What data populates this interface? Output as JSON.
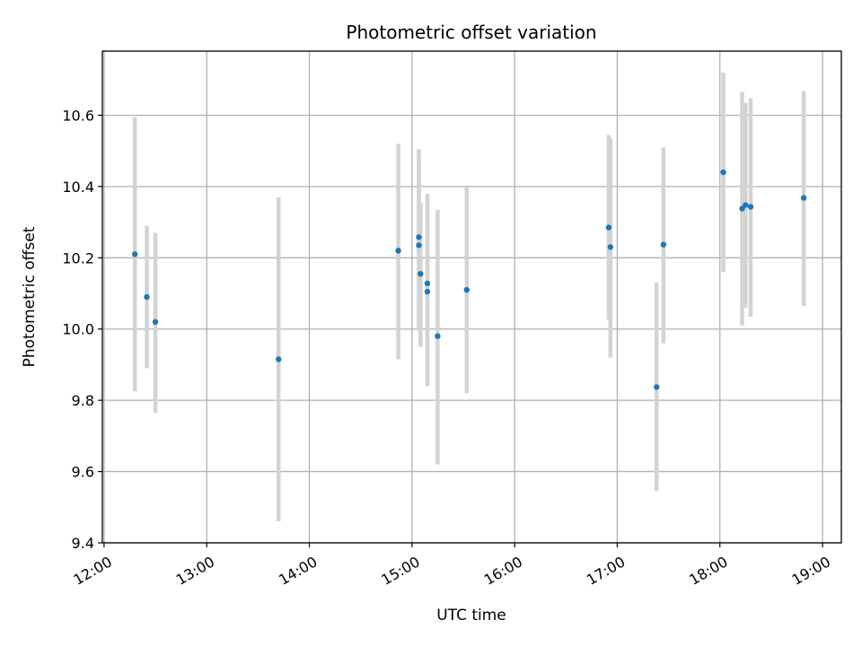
{
  "chart_data": {
    "type": "scatter",
    "title": "Photometric offset variation",
    "xlabel": "UTC time",
    "ylabel": "Photometric offset",
    "x_is_time": true,
    "xlim": [
      "11:59",
      "19:11"
    ],
    "ylim": [
      9.4,
      10.78
    ],
    "x_ticks": [
      "12:00",
      "13:00",
      "14:00",
      "15:00",
      "16:00",
      "17:00",
      "18:00",
      "19:00"
    ],
    "y_ticks": [
      9.4,
      9.6,
      9.8,
      10.0,
      10.2,
      10.4,
      10.6
    ],
    "y_tick_labels": [
      "9.4",
      "9.6",
      "9.8",
      "10.0",
      "10.2",
      "10.4",
      "10.6"
    ],
    "grid": true,
    "point_color": "#1f77b4",
    "errorbar_color": "#d3d3d3",
    "series": [
      {
        "points": [
          {
            "x": "12:18",
            "y": 10.21,
            "ylow": 9.825,
            "yhigh": 10.595
          },
          {
            "x": "12:25",
            "y": 10.09,
            "ylow": 9.89,
            "yhigh": 10.29
          },
          {
            "x": "12:30",
            "y": 10.02,
            "ylow": 9.765,
            "yhigh": 10.27
          },
          {
            "x": "13:42",
            "y": 9.915,
            "ylow": 9.46,
            "yhigh": 10.37
          },
          {
            "x": "14:52",
            "y": 10.22,
            "ylow": 9.915,
            "yhigh": 10.52
          },
          {
            "x": "15:04",
            "y": 10.258,
            "ylow": 10.01,
            "yhigh": 10.505
          },
          {
            "x": "15:04",
            "y": 10.235,
            "ylow": 9.995,
            "yhigh": 10.47
          },
          {
            "x": "15:05",
            "y": 10.155,
            "ylow": 9.95,
            "yhigh": 10.355
          },
          {
            "x": "15:09",
            "y": 10.105,
            "ylow": 9.84,
            "yhigh": 10.37
          },
          {
            "x": "15:09",
            "y": 10.128,
            "ylow": 9.875,
            "yhigh": 10.38
          },
          {
            "x": "15:15",
            "y": 9.98,
            "ylow": 9.62,
            "yhigh": 10.335
          },
          {
            "x": "15:32",
            "y": 10.11,
            "ylow": 9.82,
            "yhigh": 10.4
          },
          {
            "x": "16:55",
            "y": 10.285,
            "ylow": 10.025,
            "yhigh": 10.545
          },
          {
            "x": "16:56",
            "y": 10.23,
            "ylow": 9.92,
            "yhigh": 10.535
          },
          {
            "x": "17:23",
            "y": 9.837,
            "ylow": 9.545,
            "yhigh": 10.13
          },
          {
            "x": "17:27",
            "y": 10.237,
            "ylow": 9.96,
            "yhigh": 10.51
          },
          {
            "x": "18:02",
            "y": 10.44,
            "ylow": 10.16,
            "yhigh": 10.72
          },
          {
            "x": "18:13",
            "y": 10.338,
            "ylow": 10.01,
            "yhigh": 10.665
          },
          {
            "x": "18:15",
            "y": 10.348,
            "ylow": 10.06,
            "yhigh": 10.635
          },
          {
            "x": "18:18",
            "y": 10.343,
            "ylow": 10.035,
            "yhigh": 10.648
          },
          {
            "x": "18:49",
            "y": 10.368,
            "ylow": 10.065,
            "yhigh": 10.668
          }
        ]
      }
    ]
  }
}
